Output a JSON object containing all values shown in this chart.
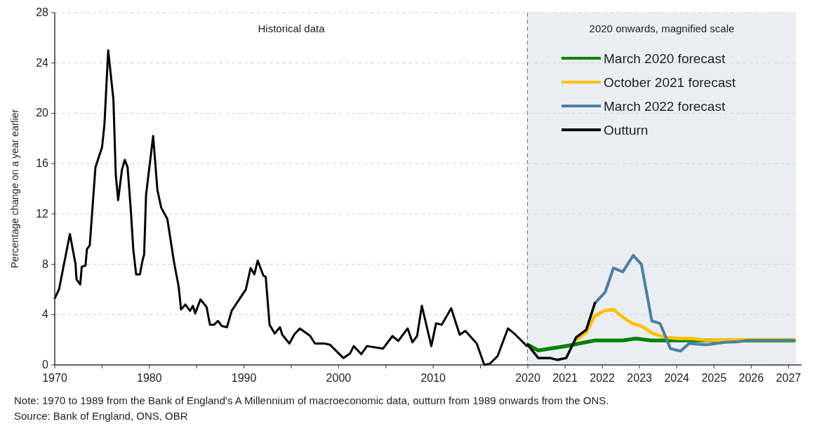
{
  "chart_data": [
    {
      "type": "line",
      "ylabel": "Percentage change on a year earlier",
      "xlim": [
        1970,
        2020
      ],
      "xticks": [
        1970,
        {
          "value": 1975,
          "label": null
        },
        1980,
        {
          "value": 1985,
          "label": null
        },
        1990,
        {
          "value": 1995,
          "label": null
        },
        2000,
        {
          "value": 2005,
          "label": null
        },
        2010,
        {
          "value": 2015,
          "label": null
        }
      ],
      "ylim": [
        0,
        28
      ],
      "yticks": [
        0,
        4,
        8,
        12,
        16,
        20,
        24,
        28
      ],
      "grid": "y",
      "legend": false,
      "annotations": [
        "Historical data",
        "Note: 1970 to 1989  from the Bank of England's A Millennium of macroeconomic data, outturn from 1989 onwards from the ONS.",
        "Source: Bank of England, ONS, OBR"
      ],
      "ref_lines": [
        {
          "axis": "x",
          "value": 2020,
          "line_style": "dashed",
          "color": "#404040"
        }
      ],
      "series": [
        {
          "color": "#000000",
          "x": [
            1970.0,
            1970.45,
            1971.6,
            1972.2,
            1972.3,
            1972.7,
            1972.85,
            1973.25,
            1973.4,
            1973.7,
            1974.3,
            1975.0,
            1975.25,
            1975.65,
            1976.2,
            1976.45,
            1976.7,
            1977.1,
            1977.4,
            1977.7,
            1978.05,
            1978.3,
            1978.6,
            1979.0,
            1979.25,
            1979.45,
            1979.65,
            1980.4,
            1980.85,
            1981.25,
            1981.9,
            1982.6,
            1983.1,
            1983.35,
            1983.8,
            1984.3,
            1984.6,
            1984.85,
            1985.4,
            1986.05,
            1986.4,
            1986.85,
            1987.25,
            1987.65,
            1988.2,
            1988.7,
            1989.4,
            1990.2,
            1990.7,
            1991.1,
            1991.45,
            1992.05,
            1992.3,
            1992.7,
            1993.25,
            1993.8,
            1994.05,
            1994.8,
            1995.3,
            1995.9,
            1997.0,
            1997.5,
            1998.5,
            1999.1,
            2000.5,
            2001.2,
            2001.6,
            2002.4,
            2003.0,
            2004.7,
            2005.7,
            2006.3,
            2007.3,
            2007.8,
            2008.3,
            2008.8,
            2009.8,
            2010.3,
            2010.9,
            2011.9,
            2012.8,
            2013.4,
            2014.6,
            2015.4,
            2016.0,
            2016.8,
            2017.9,
            2018.7,
            2019.9
          ],
          "values": [
            5.3,
            6.0,
            10.4,
            8.0,
            6.8,
            6.4,
            7.8,
            7.9,
            9.2,
            9.5,
            15.7,
            17.3,
            19.1,
            25.0,
            21.1,
            15.1,
            13.1,
            15.5,
            16.3,
            15.7,
            12.2,
            9.2,
            7.2,
            7.2,
            8.2,
            8.8,
            13.5,
            18.2,
            13.9,
            12.5,
            11.6,
            8.2,
            6.2,
            4.4,
            4.8,
            4.3,
            4.7,
            4.1,
            5.2,
            4.6,
            3.2,
            3.2,
            3.5,
            3.1,
            3.0,
            4.3,
            5.1,
            6.0,
            7.7,
            7.2,
            8.3,
            7.1,
            7.0,
            3.2,
            2.5,
            3.0,
            2.4,
            1.7,
            2.4,
            2.9,
            2.3,
            1.7,
            1.7,
            1.6,
            0.55,
            0.9,
            1.5,
            0.85,
            1.5,
            1.3,
            2.3,
            1.9,
            2.9,
            1.8,
            2.3,
            4.7,
            1.5,
            3.3,
            3.2,
            4.5,
            2.4,
            2.7,
            1.7,
            0.0,
            0.1,
            0.7,
            2.9,
            2.4,
            1.5
          ]
        }
      ]
    },
    {
      "type": "line",
      "xlim": [
        2020,
        2027.2
      ],
      "xticks": [
        2020,
        2021,
        2022,
        2023,
        2024,
        2025,
        2026,
        2027
      ],
      "ylim": [
        0,
        28
      ],
      "yticks": [
        0,
        4,
        8,
        12,
        16,
        20,
        24,
        28
      ],
      "grid": "y",
      "legend": "top right",
      "tick_labels": "x",
      "bands": [
        {
          "axis": "x",
          "from": 2020,
          "to": 2027.2,
          "label": "2020 onwards, magnified scale",
          "color": "#eaeef2"
        }
      ],
      "series": [
        {
          "name": "March 2020 forecast",
          "color": "#008000",
          "x": [
            2020.0,
            2020.28,
            2021.03,
            2021.8,
            2022.55,
            2022.9,
            2023.3,
            2027.15
          ],
          "values": [
            1.6,
            1.15,
            1.5,
            1.95,
            1.95,
            2.1,
            1.95,
            1.95
          ]
        },
        {
          "name": "October 2021 forecast",
          "color": "#ffc000",
          "x": [
            2021.3,
            2021.57,
            2021.8,
            2022.05,
            2022.3,
            2022.55,
            2022.8,
            2023.05,
            2023.36,
            2023.68,
            2024.05,
            2024.4,
            2024.8,
            2025.4,
            2027.15
          ],
          "values": [
            2.0,
            2.6,
            3.9,
            4.3,
            4.4,
            3.8,
            3.3,
            3.1,
            2.5,
            2.2,
            2.1,
            2.1,
            1.95,
            2.0,
            2.0
          ]
        },
        {
          "name": "March 2022 forecast",
          "color": "#4f7fa0",
          "x": [
            2021.8,
            2022.08,
            2022.3,
            2022.55,
            2022.83,
            2023.05,
            2023.33,
            2023.55,
            2023.83,
            2024.1,
            2024.33,
            2024.8,
            2025.3,
            2025.67,
            2025.92,
            2027.15
          ],
          "values": [
            4.9,
            5.8,
            7.7,
            7.4,
            8.7,
            8.0,
            3.5,
            3.3,
            1.3,
            1.1,
            1.7,
            1.6,
            1.8,
            1.85,
            1.95,
            1.95
          ]
        },
        {
          "name": "Outturn",
          "color": "#000000",
          "x": [
            2020.0,
            2020.28,
            2020.6,
            2020.8,
            2021.03,
            2021.3,
            2021.57,
            2021.8
          ],
          "values": [
            1.6,
            0.55,
            0.55,
            0.4,
            0.55,
            2.2,
            2.8,
            4.9
          ]
        }
      ]
    }
  ]
}
